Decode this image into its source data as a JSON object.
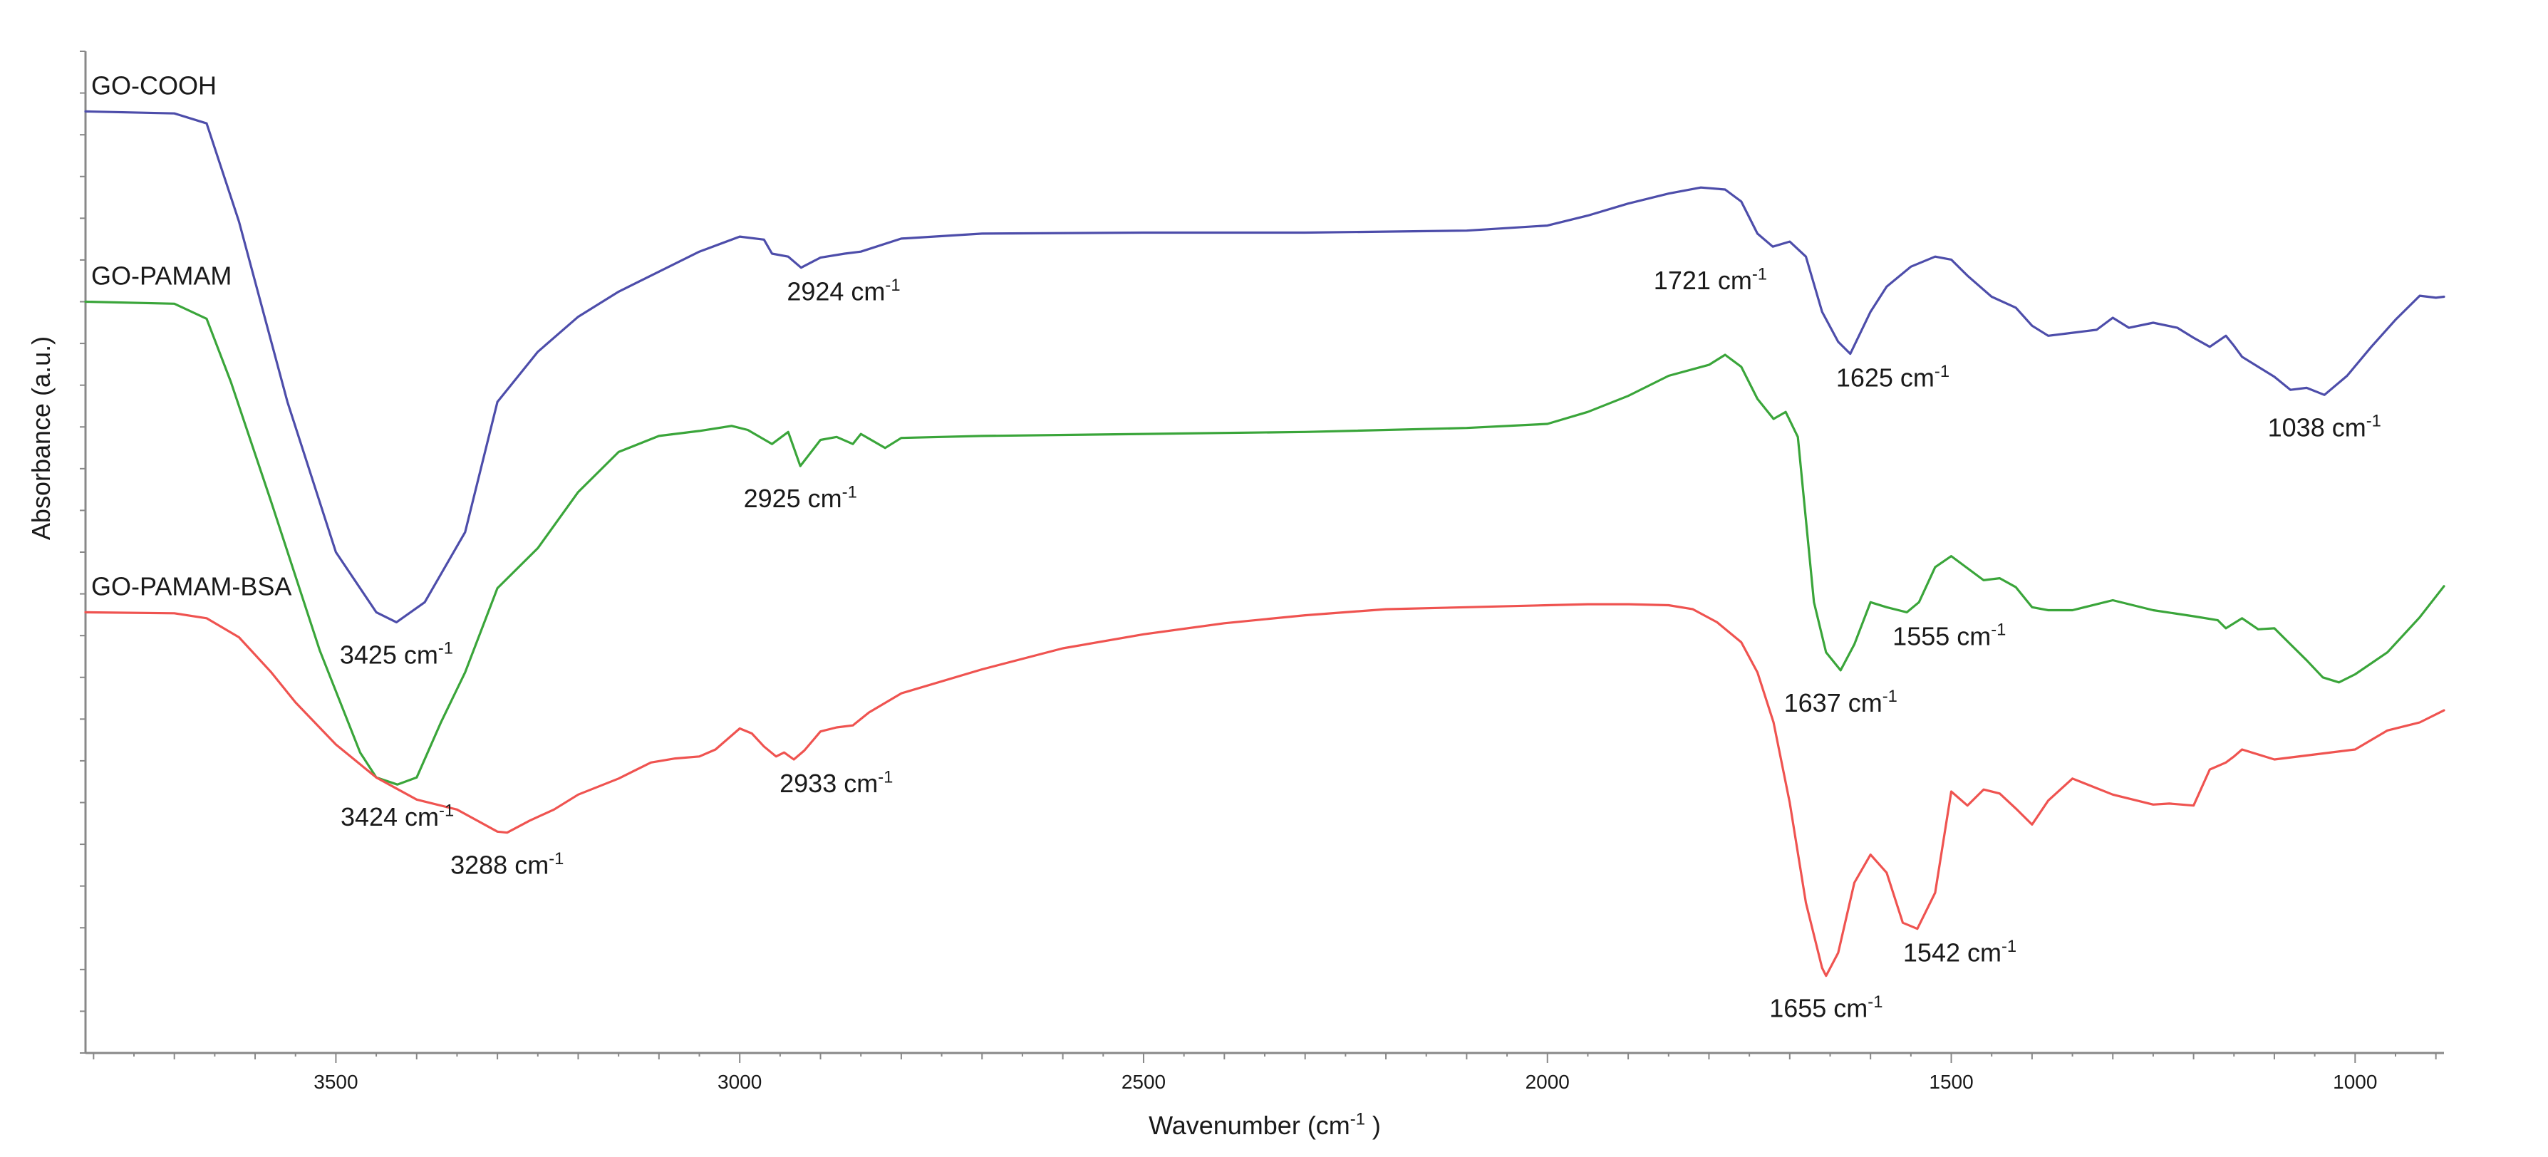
{
  "chart_data": {
    "type": "line",
    "xlabel": "Wavenumber  (cm",
    "xlabel_sup": "-1",
    "xlabel_tail": " )",
    "ylabel": "Absorbance  (a.u.)",
    "xlim": [
      3810,
      890
    ],
    "x_reversed": true,
    "xticks": [
      3500,
      3000,
      2500,
      2000,
      1500,
      1000
    ],
    "ylim": [
      0,
      100
    ],
    "y_tick_labels": false,
    "grid": false,
    "colors": {
      "GO-COOH": "#4d4daa",
      "GO-PAMAM": "#3aa53a",
      "GO-PAMAM-BSA": "#ef5350",
      "axis": "#888888",
      "text": "#1a1a1a"
    },
    "series": [
      {
        "name": "GO-COOH",
        "x": [
          3810,
          3700,
          3660,
          3620,
          3560,
          3500,
          3450,
          3425,
          3390,
          3340,
          3300,
          3250,
          3200,
          3150,
          3100,
          3050,
          3000,
          2970,
          2960,
          2940,
          2924,
          2900,
          2870,
          2850,
          2800,
          2700,
          2500,
          2300,
          2100,
          2000,
          1950,
          1900,
          1850,
          1810,
          1780,
          1760,
          1740,
          1721,
          1700,
          1680,
          1660,
          1640,
          1625,
          1600,
          1580,
          1550,
          1520,
          1500,
          1480,
          1450,
          1420,
          1400,
          1380,
          1350,
          1320,
          1300,
          1280,
          1250,
          1220,
          1200,
          1180,
          1160,
          1150,
          1140,
          1120,
          1100,
          1080,
          1060,
          1038,
          1010,
          980,
          950,
          920,
          900,
          890
        ],
        "y": [
          94,
          93.8,
          92.8,
          83,
          65,
          50,
          44,
          43,
          45,
          52,
          65,
          70,
          73.5,
          76,
          78,
          80,
          81.5,
          81.2,
          79.8,
          79.5,
          78.4,
          79.4,
          79.8,
          80,
          81.3,
          81.8,
          81.9,
          81.9,
          82.1,
          82.6,
          83.6,
          84.8,
          85.8,
          86.4,
          86.2,
          85,
          81.8,
          80.5,
          81,
          79.5,
          74,
          71,
          69.8,
          74,
          76.5,
          78.5,
          79.5,
          79.2,
          77.6,
          75.5,
          74.4,
          72.6,
          71.6,
          71.9,
          72.2,
          73.4,
          72.4,
          72.9,
          72.4,
          71.4,
          70.5,
          71.6,
          70.6,
          69.5,
          68.5,
          67.5,
          66.2,
          66.4,
          65.7,
          67.6,
          70.5,
          73.2,
          75.6,
          75.4,
          75.5
        ]
      },
      {
        "name": "GO-PAMAM",
        "x": [
          3810,
          3700,
          3660,
          3630,
          3580,
          3520,
          3470,
          3450,
          3424,
          3400,
          3370,
          3340,
          3300,
          3250,
          3200,
          3150,
          3100,
          3050,
          3010,
          2990,
          2960,
          2940,
          2925,
          2900,
          2880,
          2860,
          2850,
          2820,
          2800,
          2700,
          2500,
          2300,
          2100,
          2000,
          1950,
          1900,
          1850,
          1800,
          1780,
          1760,
          1740,
          1720,
          1705,
          1690,
          1670,
          1655,
          1637,
          1620,
          1600,
          1580,
          1555,
          1540,
          1520,
          1500,
          1480,
          1460,
          1440,
          1420,
          1400,
          1380,
          1350,
          1300,
          1250,
          1200,
          1170,
          1160,
          1140,
          1120,
          1100,
          1080,
          1060,
          1040,
          1020,
          1000,
          960,
          920,
          890
        ],
        "y": [
          75,
          74.8,
          73.3,
          67,
          55,
          40.2,
          30,
          27.5,
          26.8,
          27.5,
          33,
          38,
          46.4,
          50.4,
          56,
          60,
          61.6,
          62.1,
          62.6,
          62.2,
          60.8,
          62,
          58.6,
          61.2,
          61.5,
          60.8,
          61.8,
          60.4,
          61.4,
          61.6,
          61.8,
          62,
          62.4,
          62.8,
          64,
          65.6,
          67.6,
          68.7,
          69.7,
          68.5,
          65.3,
          63.3,
          64,
          61.5,
          45,
          40,
          38.2,
          40.8,
          45,
          44.5,
          44,
          45,
          48.5,
          49.6,
          48.4,
          47.2,
          47.4,
          46.5,
          44.5,
          44.2,
          44.2,
          45.2,
          44.2,
          43.6,
          43.2,
          42.4,
          43.4,
          42.3,
          42.4,
          40.8,
          39.2,
          37.5,
          37,
          37.8,
          40,
          43.5,
          46.6
        ]
      },
      {
        "name": "GO-PAMAM-BSA",
        "x": [
          3810,
          3700,
          3660,
          3620,
          3580,
          3550,
          3500,
          3450,
          3400,
          3350,
          3300,
          3288,
          3260,
          3230,
          3200,
          3150,
          3110,
          3080,
          3050,
          3030,
          3000,
          2985,
          2970,
          2955,
          2945,
          2933,
          2920,
          2900,
          2880,
          2860,
          2840,
          2800,
          2700,
          2600,
          2500,
          2400,
          2300,
          2200,
          2100,
          2000,
          1950,
          1900,
          1850,
          1820,
          1790,
          1760,
          1740,
          1720,
          1700,
          1680,
          1660,
          1655,
          1640,
          1620,
          1600,
          1580,
          1560,
          1542,
          1520,
          1500,
          1480,
          1460,
          1440,
          1420,
          1400,
          1380,
          1350,
          1300,
          1250,
          1230,
          1200,
          1180,
          1160,
          1150,
          1140,
          1100,
          1050,
          1000,
          960,
          920,
          890
        ],
        "y": [
          44,
          43.9,
          43.4,
          41.5,
          38,
          35,
          30.8,
          27.5,
          25.3,
          24.3,
          22.1,
          22,
          23.2,
          24.3,
          25.8,
          27.4,
          29,
          29.4,
          29.6,
          30.3,
          32.4,
          31.9,
          30.6,
          29.6,
          30,
          29.3,
          30.2,
          32.1,
          32.5,
          32.7,
          34,
          35.9,
          38.3,
          40.4,
          41.8,
          42.9,
          43.7,
          44.3,
          44.5,
          44.7,
          44.8,
          44.8,
          44.7,
          44.3,
          43,
          41,
          38,
          33,
          25,
          15,
          8.5,
          7.7,
          10,
          17,
          19.8,
          18,
          13,
          12.4,
          16,
          26.1,
          24.7,
          26.3,
          25.9,
          24.4,
          22.8,
          25.2,
          27.4,
          25.8,
          24.8,
          24.9,
          24.7,
          28.3,
          29,
          29.6,
          30.3,
          29.3,
          29.8,
          30.3,
          32.2,
          33,
          34.2
        ]
      }
    ],
    "series_labels": [
      "GO-COOH",
      "GO-PAMAM",
      "GO-PAMAM-BSA"
    ],
    "annotations": [
      {
        "text": "2924 cm",
        "x": 2924,
        "y": 78.4,
        "ha": "left",
        "series": "GO-COOH"
      },
      {
        "text": "1721 cm",
        "x": 1721,
        "y": 80.5,
        "ha": "right",
        "series": "GO-COOH"
      },
      {
        "text": "1625 cm",
        "x": 1625,
        "y": 69.8,
        "ha": "left",
        "series": "GO-COOH"
      },
      {
        "text": "1038 cm",
        "x": 1038,
        "y": 65.7,
        "ha": "center",
        "series": "GO-COOH"
      },
      {
        "text": "3425 cm",
        "x": 3425,
        "y": 43,
        "ha": "center",
        "series": "GO-COOH"
      },
      {
        "text": "2925 cm",
        "x": 2925,
        "y": 58.6,
        "ha": "center",
        "series": "GO-PAMAM"
      },
      {
        "text": "1555 cm",
        "x": 1555,
        "y": 44,
        "ha": "left",
        "series": "GO-PAMAM"
      },
      {
        "text": "1637 cm",
        "x": 1637,
        "y": 38.2,
        "ha": "center",
        "series": "GO-PAMAM"
      },
      {
        "text": "3424 cm",
        "x": 3424,
        "y": 26.8,
        "ha": "center",
        "series": "GO-PAMAM"
      },
      {
        "text": "2933 cm",
        "x": 2933,
        "y": 29.3,
        "ha": "left",
        "series": "GO-PAMAM-BSA"
      },
      {
        "text": "3288 cm",
        "x": 3288,
        "y": 22,
        "ha": "center",
        "series": "GO-PAMAM-BSA"
      },
      {
        "text": "1542 cm",
        "x": 1542,
        "y": 12.4,
        "ha": "left",
        "series": "GO-PAMAM-BSA"
      },
      {
        "text": "1655 cm",
        "x": 1655,
        "y": 7.7,
        "ha": "center",
        "series": "GO-PAMAM-BSA"
      }
    ],
    "unit_superscript": "-1"
  }
}
